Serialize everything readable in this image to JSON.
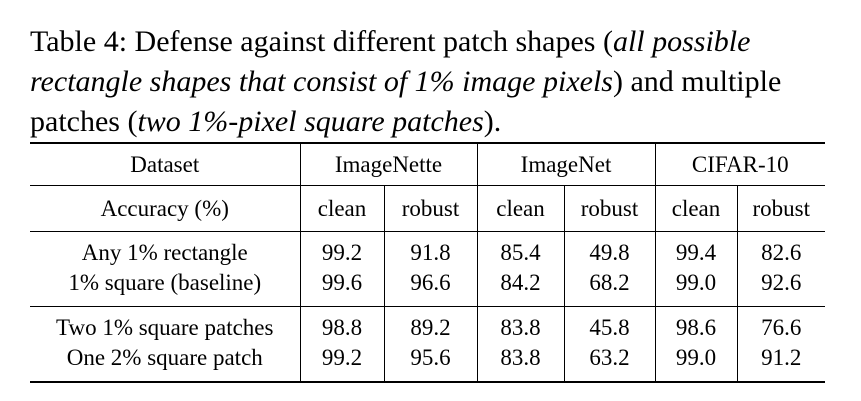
{
  "caption": {
    "prefix": "Table 4: Defense against different patch shapes (",
    "italic1": "all possible rectangle shapes that consist of 1% image pixels",
    "middle": ") and multiple patches (",
    "italic2": "two 1%-pixel square patches",
    "suffix": ")."
  },
  "table": {
    "header": {
      "dataset_label": "Dataset",
      "groups": [
        "ImageNette",
        "ImageNet",
        "CIFAR-10"
      ],
      "accuracy_label": "Accuracy (%)",
      "subcolumns": [
        "clean",
        "robust",
        "clean",
        "robust",
        "clean",
        "robust"
      ]
    },
    "sections": [
      {
        "rows": [
          {
            "label": "Any 1% rectangle",
            "values": [
              "99.2",
              "91.8",
              "85.4",
              "49.8",
              "99.4",
              "82.6"
            ]
          },
          {
            "label": "1% square (baseline)",
            "values": [
              "99.6",
              "96.6",
              "84.2",
              "68.2",
              "99.0",
              "92.6"
            ]
          }
        ]
      },
      {
        "rows": [
          {
            "label": "Two 1% square patches",
            "values": [
              "98.8",
              "89.2",
              "83.8",
              "45.8",
              "98.6",
              "76.6"
            ]
          },
          {
            "label": "One 2% square patch",
            "values": [
              "99.2",
              "95.6",
              "83.8",
              "63.2",
              "99.0",
              "91.2"
            ]
          }
        ]
      }
    ]
  }
}
